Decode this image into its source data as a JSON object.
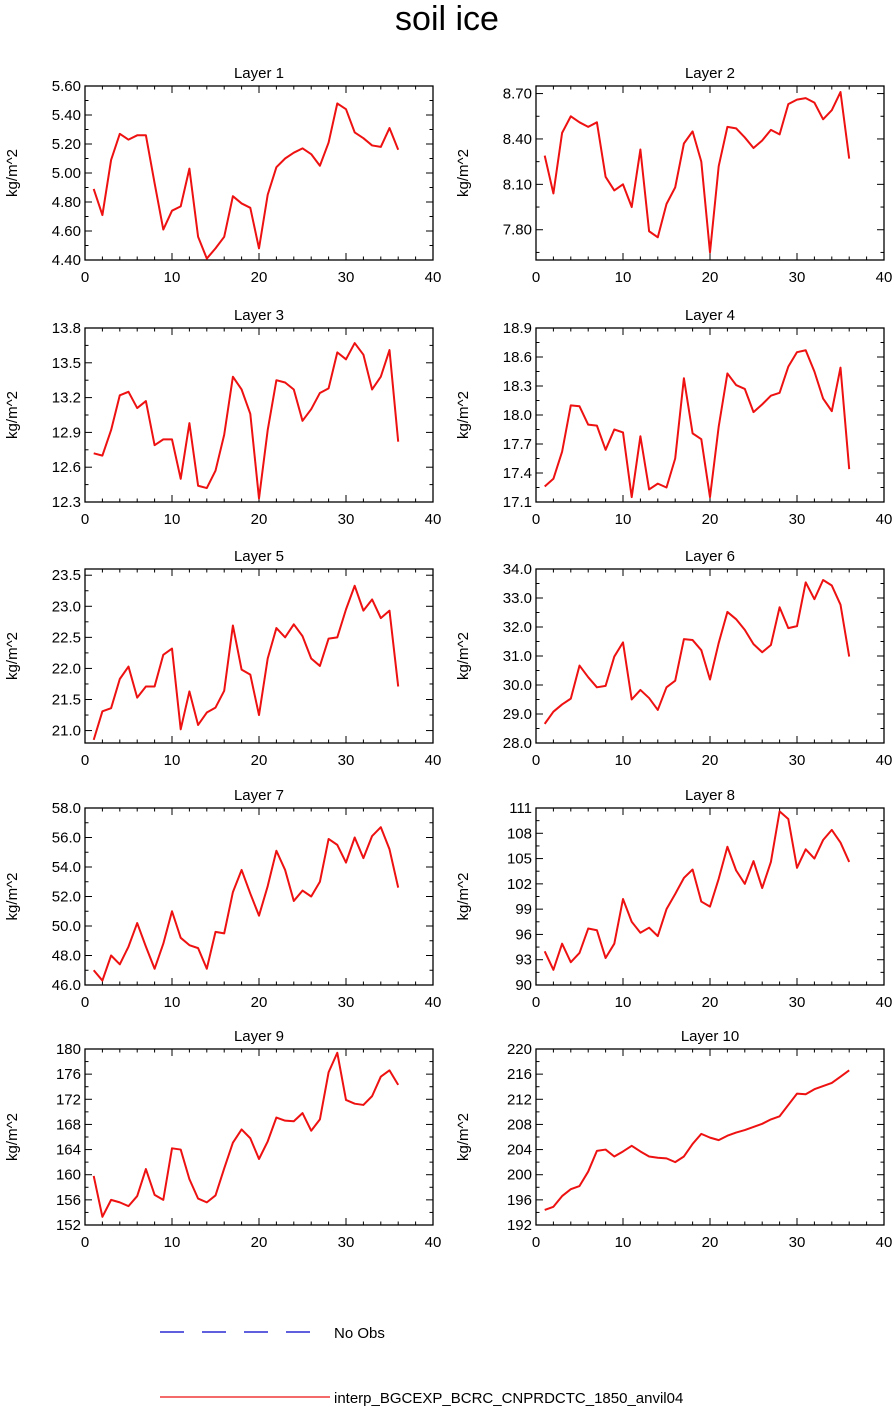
{
  "title": "soil ice",
  "legend": {
    "entries": [
      {
        "label": "No Obs",
        "color": "#0000cc",
        "style": "dashed"
      },
      {
        "label": "interp_BGCEXP_BCRC_CNPRDCTC_1850_anvil04",
        "color": "#ee1111",
        "style": "solid"
      }
    ],
    "placement": "bottom"
  },
  "chart_data": [
    {
      "type": "line",
      "title": "Layer 1",
      "ylabel": "kg/m^2",
      "xlim": [
        0,
        40
      ],
      "xticks": [
        "0",
        "10",
        "20",
        "30",
        "40"
      ],
      "ylim": [
        4.4,
        5.6
      ],
      "yticks": [
        "4.40",
        "4.60",
        "4.80",
        "5.00",
        "5.20",
        "5.40",
        "5.60"
      ],
      "series": [
        {
          "name": "interp_BGCEXP_BCRC_CNPRDCTC_1850_anvil04",
          "color": "#ee1111",
          "values": [
            4.89,
            4.71,
            5.09,
            5.27,
            5.23,
            5.26,
            5.26,
            4.93,
            4.61,
            4.74,
            4.77,
            5.03,
            4.56,
            4.41,
            4.48,
            4.56,
            4.84,
            4.79,
            4.76,
            4.48,
            4.85,
            5.04,
            5.1,
            5.14,
            5.17,
            5.13,
            5.05,
            5.21,
            5.48,
            5.44,
            5.28,
            5.24,
            5.19,
            5.18,
            5.31,
            5.16
          ]
        }
      ]
    },
    {
      "type": "line",
      "title": "Layer 2",
      "ylabel": "kg/m^2",
      "xlim": [
        0,
        40
      ],
      "xticks": [
        "0",
        "10",
        "20",
        "30",
        "40"
      ],
      "ylim": [
        7.6,
        8.75
      ],
      "yticks": [
        "7.80",
        "8.10",
        "8.40",
        "8.70"
      ],
      "series": [
        {
          "name": "interp_BGCEXP_BCRC_CNPRDCTC_1850_anvil04",
          "color": "#ee1111",
          "values": [
            8.29,
            8.04,
            8.44,
            8.55,
            8.51,
            8.48,
            8.51,
            8.15,
            8.06,
            8.1,
            7.95,
            8.33,
            7.79,
            7.75,
            7.97,
            8.08,
            8.37,
            8.45,
            8.25,
            7.65,
            8.22,
            8.48,
            8.47,
            8.41,
            8.34,
            8.39,
            8.46,
            8.43,
            8.63,
            8.66,
            8.67,
            8.64,
            8.53,
            8.59,
            8.71,
            8.27
          ]
        }
      ]
    },
    {
      "type": "line",
      "title": "Layer 3",
      "ylabel": "kg/m^2",
      "xlim": [
        0,
        40
      ],
      "xticks": [
        "0",
        "10",
        "20",
        "30",
        "40"
      ],
      "ylim": [
        12.3,
        13.8
      ],
      "yticks": [
        "12.3",
        "12.6",
        "12.9",
        "13.2",
        "13.5",
        "13.8"
      ],
      "series": [
        {
          "name": "interp_BGCEXP_BCRC_CNPRDCTC_1850_anvil04",
          "color": "#ee1111",
          "values": [
            12.72,
            12.7,
            12.92,
            13.22,
            13.25,
            13.11,
            13.17,
            12.79,
            12.84,
            12.84,
            12.5,
            12.98,
            12.44,
            12.42,
            12.57,
            12.88,
            13.38,
            13.27,
            13.06,
            12.33,
            12.92,
            13.35,
            13.33,
            13.27,
            13.0,
            13.1,
            13.24,
            13.28,
            13.59,
            13.53,
            13.67,
            13.57,
            13.27,
            13.38,
            13.61,
            12.82
          ]
        }
      ]
    },
    {
      "type": "line",
      "title": "Layer 4",
      "ylabel": "kg/m^2",
      "xlim": [
        0,
        40
      ],
      "xticks": [
        "0",
        "10",
        "20",
        "30",
        "40"
      ],
      "ylim": [
        17.1,
        18.9
      ],
      "yticks": [
        "17.1",
        "17.4",
        "17.7",
        "18.0",
        "18.3",
        "18.6",
        "18.9"
      ],
      "series": [
        {
          "name": "interp_BGCEXP_BCRC_CNPRDCTC_1850_anvil04",
          "color": "#ee1111",
          "values": [
            17.26,
            17.34,
            17.62,
            18.1,
            18.09,
            17.9,
            17.89,
            17.64,
            17.85,
            17.82,
            17.15,
            17.78,
            17.23,
            17.29,
            17.25,
            17.55,
            18.38,
            17.81,
            17.75,
            17.15,
            17.88,
            18.43,
            18.31,
            18.27,
            18.03,
            18.11,
            18.2,
            18.23,
            18.5,
            18.65,
            18.67,
            18.45,
            18.17,
            18.04,
            18.49,
            17.44
          ]
        }
      ]
    },
    {
      "type": "line",
      "title": "Layer 5",
      "ylabel": "kg/m^2",
      "xlim": [
        0,
        40
      ],
      "xticks": [
        "0",
        "10",
        "20",
        "30",
        "40"
      ],
      "ylim": [
        20.8,
        23.6
      ],
      "yticks": [
        "21.0",
        "21.5",
        "22.0",
        "22.5",
        "23.0",
        "23.5"
      ],
      "series": [
        {
          "name": "interp_BGCEXP_BCRC_CNPRDCTC_1850_anvil04",
          "color": "#ee1111",
          "values": [
            20.85,
            21.31,
            21.36,
            21.83,
            22.03,
            21.53,
            21.71,
            21.71,
            22.22,
            22.32,
            21.02,
            21.63,
            21.09,
            21.29,
            21.37,
            21.64,
            22.69,
            21.98,
            21.9,
            21.25,
            22.16,
            22.65,
            22.5,
            22.71,
            22.52,
            22.16,
            22.04,
            22.48,
            22.5,
            22.95,
            23.33,
            22.93,
            23.11,
            22.81,
            22.93,
            21.71
          ]
        }
      ]
    },
    {
      "type": "line",
      "title": "Layer 6",
      "ylabel": "kg/m^2",
      "xlim": [
        0,
        40
      ],
      "xticks": [
        "0",
        "10",
        "20",
        "30",
        "40"
      ],
      "ylim": [
        28.0,
        34.0
      ],
      "yticks": [
        "28.0",
        "29.0",
        "30.0",
        "31.0",
        "32.0",
        "33.0",
        "34.0"
      ],
      "series": [
        {
          "name": "interp_BGCEXP_BCRC_CNPRDCTC_1850_anvil04",
          "color": "#ee1111",
          "values": [
            28.66,
            29.08,
            29.33,
            29.53,
            30.67,
            30.27,
            29.92,
            29.97,
            30.98,
            31.47,
            29.5,
            29.83,
            29.55,
            29.14,
            29.92,
            30.15,
            31.58,
            31.55,
            31.2,
            30.19,
            31.45,
            32.52,
            32.27,
            31.9,
            31.41,
            31.13,
            31.38,
            32.68,
            31.96,
            32.03,
            33.54,
            32.96,
            33.62,
            33.43,
            32.77,
            30.98
          ]
        }
      ]
    },
    {
      "type": "line",
      "title": "Layer 7",
      "ylabel": "kg/m^2",
      "xlim": [
        0,
        40
      ],
      "xticks": [
        "0",
        "10",
        "20",
        "30",
        "40"
      ],
      "ylim": [
        46.0,
        58.0
      ],
      "yticks": [
        "46.0",
        "48.0",
        "50.0",
        "52.0",
        "54.0",
        "56.0",
        "58.0"
      ],
      "series": [
        {
          "name": "interp_BGCEXP_BCRC_CNPRDCTC_1850_anvil04",
          "color": "#ee1111",
          "values": [
            47.0,
            46.3,
            48.0,
            47.4,
            48.6,
            50.2,
            48.6,
            47.1,
            48.8,
            51.0,
            49.2,
            48.7,
            48.5,
            47.1,
            49.6,
            49.5,
            52.3,
            53.8,
            52.2,
            50.7,
            52.7,
            55.1,
            53.8,
            51.7,
            52.4,
            52.0,
            53.0,
            55.9,
            55.5,
            54.3,
            56.0,
            54.6,
            56.1,
            56.7,
            55.2,
            52.6
          ]
        }
      ]
    },
    {
      "type": "line",
      "title": "Layer 8",
      "ylabel": "kg/m^2",
      "xlim": [
        0,
        40
      ],
      "xticks": [
        "0",
        "10",
        "20",
        "30",
        "40"
      ],
      "ylim": [
        90,
        111
      ],
      "yticks": [
        "90",
        "93",
        "96",
        "99",
        "102",
        "105",
        "108",
        "111"
      ],
      "series": [
        {
          "name": "interp_BGCEXP_BCRC_CNPRDCTC_1850_anvil04",
          "color": "#ee1111",
          "values": [
            94.0,
            91.8,
            94.9,
            92.7,
            93.8,
            96.7,
            96.5,
            93.2,
            94.9,
            100.2,
            97.5,
            96.2,
            96.8,
            95.8,
            99.0,
            100.8,
            102.7,
            103.7,
            99.9,
            99.3,
            102.6,
            106.4,
            103.6,
            102.0,
            104.7,
            101.5,
            104.6,
            110.6,
            109.7,
            103.9,
            106.1,
            105.0,
            107.2,
            108.4,
            106.9,
            104.6
          ]
        }
      ]
    },
    {
      "type": "line",
      "title": "Layer 9",
      "ylabel": "kg/m^2",
      "xlim": [
        0,
        40
      ],
      "xticks": [
        "0",
        "10",
        "20",
        "30",
        "40"
      ],
      "ylim": [
        152,
        180
      ],
      "yticks": [
        "152",
        "156",
        "160",
        "164",
        "168",
        "172",
        "176",
        "180"
      ],
      "series": [
        {
          "name": "interp_BGCEXP_BCRC_CNPRDCTC_1850_anvil04",
          "color": "#ee1111",
          "values": [
            159.8,
            153.3,
            156.0,
            155.6,
            155.0,
            156.6,
            160.9,
            156.8,
            156.0,
            164.2,
            164.0,
            159.3,
            156.2,
            155.6,
            156.7,
            161.0,
            165.1,
            167.2,
            165.8,
            162.5,
            165.3,
            169.1,
            168.6,
            168.5,
            169.8,
            167.0,
            168.8,
            176.3,
            179.4,
            171.9,
            171.3,
            171.1,
            172.5,
            175.6,
            176.6,
            174.3
          ]
        }
      ]
    },
    {
      "type": "line",
      "title": "Layer 10",
      "ylabel": "kg/m^2",
      "xlim": [
        0,
        40
      ],
      "xticks": [
        "0",
        "10",
        "20",
        "30",
        "40"
      ],
      "ylim": [
        192,
        220
      ],
      "yticks": [
        "192",
        "196",
        "200",
        "204",
        "208",
        "212",
        "216",
        "220"
      ],
      "series": [
        {
          "name": "interp_BGCEXP_BCRC_CNPRDCTC_1850_anvil04",
          "color": "#ee1111",
          "values": [
            194.4,
            194.9,
            196.6,
            197.7,
            198.2,
            200.5,
            203.8,
            204.0,
            202.9,
            203.7,
            204.6,
            203.7,
            202.9,
            202.7,
            202.6,
            202.0,
            202.9,
            204.9,
            206.5,
            205.9,
            205.5,
            206.2,
            206.7,
            207.1,
            207.6,
            208.1,
            208.8,
            209.3,
            211.1,
            212.9,
            212.8,
            213.6,
            214.1,
            214.6,
            215.6,
            216.6
          ]
        }
      ]
    }
  ]
}
